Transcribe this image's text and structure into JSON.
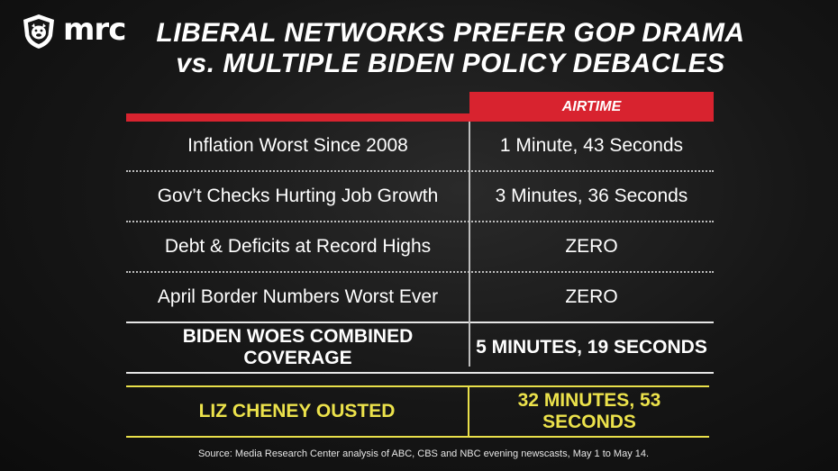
{
  "brand": {
    "logo_text": "mrc"
  },
  "title": {
    "line1": "LIBERAL NETWORKS PREFER GOP DRAMA",
    "line2_prefix": "vs.",
    "line2_rest": " MULTIPLE BIDEN POLICY DEBACLES"
  },
  "chart_data": {
    "type": "table",
    "columns": [
      "",
      "AIRTIME"
    ],
    "rows": [
      {
        "topic": "Inflation Worst Since 2008",
        "airtime": "1 Minute, 43 Seconds"
      },
      {
        "topic": "Gov’t Checks Hurting Job Growth",
        "airtime": "3 Minutes, 36 Seconds"
      },
      {
        "topic": "Debt & Deficits at Record Highs",
        "airtime": "ZERO"
      },
      {
        "topic": "April Border Numbers Worst Ever",
        "airtime": "ZERO"
      }
    ],
    "total": {
      "topic": "BIDEN WOES COMBINED COVERAGE",
      "airtime": "5 MINUTES, 19 SECONDS"
    },
    "highlight": {
      "topic": "LIZ CHENEY OUSTED",
      "airtime": "32 MINUTES, 53 SECONDS"
    }
  },
  "source": "Source: Media Research Center analysis of ABC, CBS and NBC evening newscasts, May 1 to May 14.",
  "colors": {
    "accent_red": "#d8232f",
    "highlight_yellow": "#ece24b",
    "background": "#161616"
  }
}
